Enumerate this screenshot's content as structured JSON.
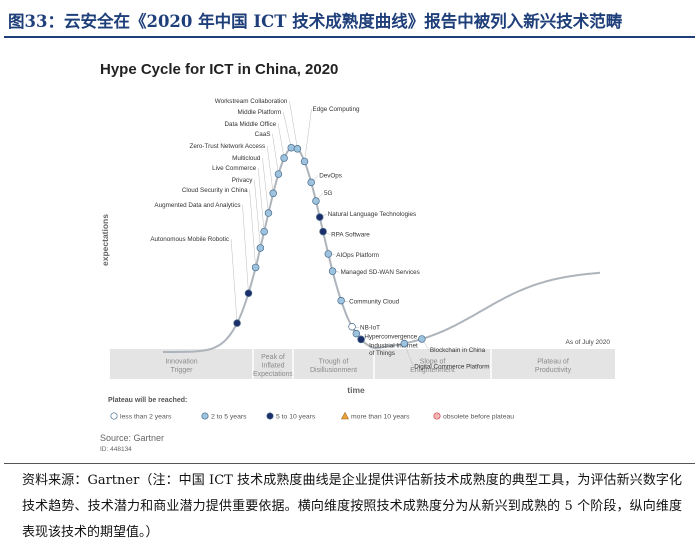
{
  "figure_title": "图33：云安全在《2020 年中国 ICT 技术成熟度曲线》报告中被列入新兴技术范畴",
  "source_note": "资料来源：Gartner（注：中国 ICT 技术成熟度曲线是企业提供评估新技术成熟度的典型工具，为评估新兴数字化技术趋势、技术潜力和商业潜力提供重要依据。横向维度按照技术成熟度分为从新兴到成熟的 5 个阶段，纵向维度表现该技术的期望值。）",
  "colors": {
    "title": "#1f3f7a",
    "curve": "#aeb4bb",
    "point_light": "#9ec3df",
    "point_dark": "#1c2f6b",
    "phase_band": "#e4e4e4",
    "phase_text": "#8a8a8a"
  },
  "chart_data": {
    "type": "scatter",
    "title": "Hype Cycle for ICT in China, 2020",
    "xlabel": "time",
    "ylabel": "expectations",
    "as_of": "As of July 2020",
    "source": "Source: Gartner",
    "id": "ID: 448134",
    "phases": [
      {
        "label": [
          "Innovation",
          "Trigger"
        ]
      },
      {
        "label": [
          "Peak of",
          "Inflated",
          "Expectations"
        ]
      },
      {
        "label": [
          "Trough of",
          "Disillusionment"
        ]
      },
      {
        "label": [
          "Slope of",
          "Enlightenment"
        ]
      },
      {
        "label": [
          "Plateau of",
          "Productivity"
        ]
      }
    ],
    "legend_title": "Plateau will be reached:",
    "legend": [
      {
        "label": "less than 2 years",
        "marker": "circle-white"
      },
      {
        "label": "2 to 5 years",
        "marker": "circle-light"
      },
      {
        "label": "5 to 10 years",
        "marker": "circle-dark"
      },
      {
        "label": "more than 10 years",
        "marker": "triangle-orange"
      },
      {
        "label": "obsolete before plateau",
        "marker": "circle-x-red"
      }
    ],
    "points": [
      {
        "name": "Autonomous Mobile Robotic",
        "t": 0.236,
        "category": "5 to 10 years",
        "label_side": "left"
      },
      {
        "name": "Augmented Data and Analytics",
        "t": 0.26,
        "category": "5 to 10 years",
        "label_side": "left"
      },
      {
        "name": "Cloud Security in China",
        "t": 0.275,
        "category": "2 to 5 years",
        "label_side": "left"
      },
      {
        "name": "Privacy",
        "t": 0.285,
        "category": "2 to 5 years",
        "label_side": "left"
      },
      {
        "name": "Live Commerce",
        "t": 0.293,
        "category": "2 to 5 years",
        "label_side": "left"
      },
      {
        "name": "Multicloud",
        "t": 0.302,
        "category": "2 to 5 years",
        "label_side": "left"
      },
      {
        "name": "Zero-Trust Network Access",
        "t": 0.312,
        "category": "2 to 5 years",
        "label_side": "left"
      },
      {
        "name": "CaaS",
        "t": 0.323,
        "category": "2 to 5 years",
        "label_side": "left"
      },
      {
        "name": "Data Middle Office",
        "t": 0.335,
        "category": "2 to 5 years",
        "label_side": "left"
      },
      {
        "name": "Middle Platform",
        "t": 0.35,
        "category": "2 to 5 years",
        "label_side": "left"
      },
      {
        "name": "Workstream Collaboration",
        "t": 0.363,
        "category": "2 to 5 years",
        "label_side": "left"
      },
      {
        "name": "Edge Computing",
        "t": 0.378,
        "category": "2 to 5 years",
        "label_side": "right"
      },
      {
        "name": "DevOps",
        "t": 0.392,
        "category": "2 to 5 years",
        "label_side": "right"
      },
      {
        "name": "5G",
        "t": 0.402,
        "category": "2 to 5 years",
        "label_side": "right"
      },
      {
        "name": "Natural Language Technologies",
        "t": 0.41,
        "category": "5 to 10 years",
        "label_side": "right"
      },
      {
        "name": "RPA Software",
        "t": 0.417,
        "category": "5 to 10 years",
        "label_side": "right"
      },
      {
        "name": "AIOps Platform",
        "t": 0.428,
        "category": "2 to 5 years",
        "label_side": "right"
      },
      {
        "name": "Managed SD-WAN Services",
        "t": 0.437,
        "category": "2 to 5 years",
        "label_side": "right"
      },
      {
        "name": "Community Cloud",
        "t": 0.455,
        "category": "2 to 5 years",
        "label_side": "right"
      },
      {
        "name": "NB-IoT",
        "t": 0.478,
        "category": "less than 2 years",
        "label_side": "right"
      },
      {
        "name": "Hyperconvergence",
        "t": 0.487,
        "category": "2 to 5 years",
        "label_side": "right"
      },
      {
        "name": "Industrial Internet of Things",
        "t": 0.497,
        "category": "5 to 10 years",
        "label_side": "right"
      },
      {
        "name": "Digital Commerce Platform",
        "t": 0.588,
        "category": "2 to 5 years",
        "label_side": "right"
      },
      {
        "name": "Blockchain in China",
        "t": 0.625,
        "category": "2 to 5 years",
        "label_side": "right"
      }
    ]
  }
}
